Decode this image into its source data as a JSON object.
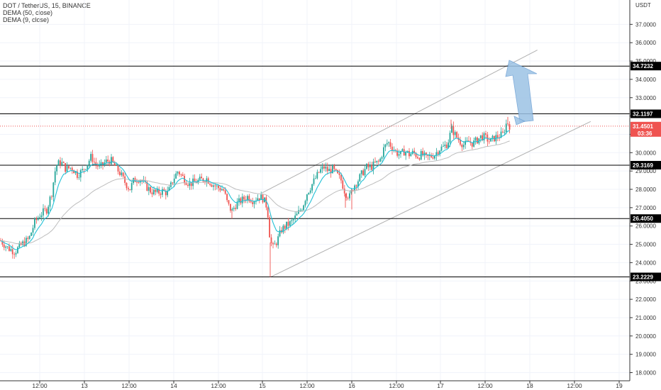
{
  "legend": {
    "symbol_line": "DOT / TetherUS, 15, BINANCE",
    "ema_slow": "DEMA (50, close)",
    "ema_fast": "DEMA (9, close)"
  },
  "currency_label": "USDT",
  "countdown": "03:36",
  "colors": {
    "up": "#26a69a",
    "down": "#ef5350",
    "dema9": "#22c1d6",
    "dema50": "#bdbdbd",
    "level_line": "#000000",
    "channel": "#b0b0b0",
    "arrow": "#9cc2e5",
    "current_price": "#ef5350"
  },
  "chart_data": {
    "type": "candlestick",
    "y_axis": {
      "min": 17.5,
      "max": 37.5,
      "ticks": [
        "18.0000",
        "19.0000",
        "20.0000",
        "21.0000",
        "22.0000",
        "23.0000",
        "24.0000",
        "25.0000",
        "26.0000",
        "27.0000",
        "28.0000",
        "29.0000",
        "30.0000",
        "31.0000",
        "32.0000",
        "33.0000",
        "34.0000",
        "35.0000",
        "36.0000",
        "37.0000"
      ]
    },
    "x_axis": {
      "ticks": [
        "12:00",
        "13",
        "12:00",
        "14",
        "12:00",
        "15",
        "12:00",
        "16",
        "12:00",
        "17",
        "12:00",
        "18",
        "12:00",
        "19"
      ]
    },
    "levels": [
      {
        "value": 34.7232,
        "label": "34.7232"
      },
      {
        "value": 32.1197,
        "label": "32.1197"
      },
      {
        "value": 29.3169,
        "label": "29.3169"
      },
      {
        "value": 26.405,
        "label": "26.4050"
      },
      {
        "value": 23.2229,
        "label": "23.2229"
      }
    ],
    "current_price": {
      "value": 31.4501,
      "label": "31.4501"
    },
    "channel": {
      "lower": {
        "from": [
          15.1,
          23.22
        ],
        "to": [
          18.7,
          31.7
        ]
      },
      "upper": {
        "from": [
          15.0,
          27.8
        ],
        "to": [
          18.1,
          35.6
        ]
      }
    },
    "close_path": [
      [
        0,
        25.2
      ],
      [
        10,
        24.8
      ],
      [
        20,
        24.6
      ],
      [
        30,
        25.0
      ],
      [
        40,
        25.3
      ],
      [
        48,
        26.2
      ],
      [
        55,
        26.6
      ],
      [
        65,
        26.9
      ],
      [
        72,
        27.8
      ],
      [
        78,
        29.3
      ],
      [
        85,
        29.5
      ],
      [
        92,
        29.1
      ],
      [
        100,
        29.2
      ],
      [
        108,
        28.8
      ],
      [
        115,
        29.0
      ],
      [
        122,
        29.4
      ],
      [
        128,
        29.8
      ],
      [
        133,
        29.4
      ],
      [
        140,
        29.2
      ],
      [
        148,
        29.5
      ],
      [
        155,
        29.6
      ],
      [
        162,
        29.2
      ],
      [
        168,
        28.9
      ],
      [
        175,
        28.4
      ],
      [
        182,
        28.0
      ],
      [
        188,
        28.5
      ],
      [
        196,
        28.6
      ],
      [
        204,
        28.2
      ],
      [
        212,
        27.9
      ],
      [
        220,
        27.8
      ],
      [
        228,
        27.9
      ],
      [
        236,
        27.8
      ],
      [
        244,
        28.6
      ],
      [
        250,
        29.0
      ],
      [
        258,
        28.6
      ],
      [
        266,
        28.3
      ],
      [
        274,
        28.4
      ],
      [
        282,
        28.5
      ],
      [
        290,
        28.6
      ],
      [
        298,
        28.3
      ],
      [
        306,
        28.1
      ],
      [
        314,
        28.0
      ],
      [
        320,
        27.2
      ],
      [
        326,
        26.8
      ],
      [
        332,
        27.2
      ],
      [
        340,
        27.4
      ],
      [
        348,
        27.6
      ],
      [
        356,
        27.4
      ],
      [
        364,
        27.6
      ],
      [
        370,
        27.5
      ],
      [
        376,
        27.0
      ],
      [
        380,
        25.2
      ],
      [
        384,
        24.8
      ],
      [
        390,
        25.2
      ],
      [
        396,
        25.8
      ],
      [
        402,
        26.0
      ],
      [
        410,
        26.2
      ],
      [
        418,
        26.6
      ],
      [
        426,
        27.1
      ],
      [
        432,
        27.8
      ],
      [
        438,
        28.2
      ],
      [
        444,
        28.6
      ],
      [
        450,
        29.0
      ],
      [
        456,
        29.2
      ],
      [
        462,
        29.0
      ],
      [
        468,
        29.1
      ],
      [
        474,
        28.8
      ],
      [
        480,
        28.5
      ],
      [
        486,
        27.8
      ],
      [
        492,
        27.6
      ],
      [
        498,
        28.2
      ],
      [
        504,
        28.5
      ],
      [
        510,
        28.9
      ],
      [
        516,
        29.2
      ],
      [
        522,
        29.2
      ],
      [
        528,
        29.4
      ],
      [
        534,
        29.5
      ],
      [
        540,
        30.2
      ],
      [
        546,
        30.6
      ],
      [
        552,
        30.3
      ],
      [
        558,
        30.0
      ],
      [
        564,
        29.9
      ],
      [
        570,
        30.1
      ],
      [
        576,
        29.9
      ],
      [
        582,
        30.0
      ],
      [
        588,
        29.8
      ],
      [
        594,
        29.9
      ],
      [
        600,
        29.7
      ],
      [
        606,
        29.8
      ],
      [
        612,
        29.9
      ],
      [
        618,
        30.2
      ],
      [
        624,
        30.3
      ],
      [
        630,
        30.5
      ],
      [
        636,
        31.3
      ],
      [
        642,
        30.9
      ],
      [
        648,
        30.6
      ],
      [
        654,
        30.4
      ],
      [
        660,
        30.6
      ],
      [
        666,
        30.5
      ],
      [
        672,
        30.7
      ],
      [
        678,
        30.9
      ],
      [
        684,
        30.8
      ],
      [
        690,
        30.6
      ],
      [
        696,
        30.8
      ],
      [
        702,
        30.9
      ],
      [
        708,
        31.0
      ],
      [
        714,
        31.7
      ],
      [
        718,
        31.45
      ]
    ]
  }
}
